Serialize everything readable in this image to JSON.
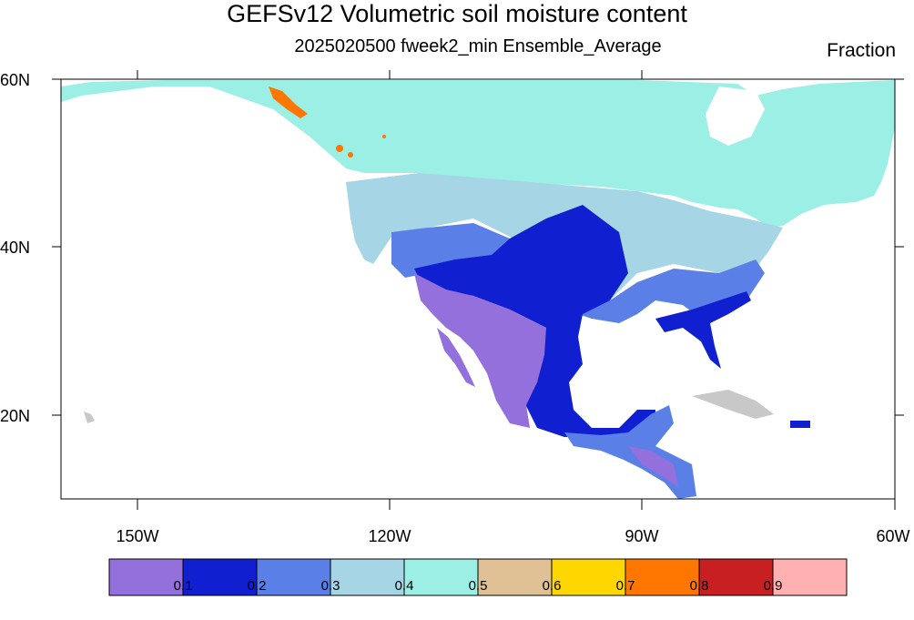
{
  "title": "GEFSv12 Volumetric soil moisture content",
  "subtitle": "2025020500 fweek2_min Ensemble_Average",
  "units": "Fraction",
  "lat_labels": [
    "60N",
    "40N",
    "20N"
  ],
  "lon_labels": [
    "150W",
    "120W",
    "90W",
    "60W"
  ],
  "colorbar": {
    "colors": [
      "#9370db",
      "#1020d0",
      "#5a80e8",
      "#a6d6e6",
      "#9cefe4",
      "#e0c095",
      "#ffd700",
      "#ff7700",
      "#c82020",
      "#ffb0b0"
    ],
    "labels": [
      "0.1",
      "0.2",
      "0.3",
      "0.4",
      "0.5",
      "0.6",
      "0.7",
      "0.8",
      "0.9"
    ]
  },
  "colors": {
    "missing": "#c8c8c8",
    "ocean": "#ffffff",
    "borders": "#222222"
  }
}
